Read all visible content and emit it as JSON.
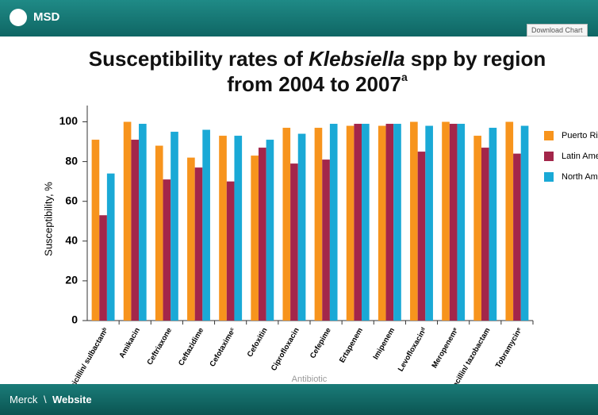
{
  "header": {
    "brand": "MSD",
    "button": "Download Chart"
  },
  "chart_data": {
    "type": "bar",
    "title": [
      "Susceptibility rates of ",
      "Klebsiella",
      " spp by region",
      "from 2004 to 2007",
      "a"
    ],
    "y_label": "Susceptibility, %",
    "x_label": "Antibiotic",
    "categories": [
      "Ampicillin/ sulbactamᵇ",
      "Amikacin",
      "Ceftriaxone",
      "Ceftazidime",
      "Cefotaximeᶜ",
      "Cefoxitin",
      "Ciprofloxacin",
      "Cefepime",
      "Ertapenem",
      "Imipenem",
      "Levofloxacinᵈ",
      "Meropenemᵉ",
      "Piperacillin/ tazobactam",
      "Tobramycinᵉ"
    ],
    "series": [
      {
        "name": "Puerto Rico",
        "color": "#f7941d",
        "values": [
          91,
          100,
          88,
          82,
          93,
          83,
          97,
          97,
          98,
          98,
          100,
          100,
          93,
          100
        ]
      },
      {
        "name": "Latin America",
        "color": "#a3264a",
        "values": [
          53,
          91,
          71,
          77,
          70,
          87,
          79,
          81,
          99,
          99,
          85,
          99,
          87,
          84
        ]
      },
      {
        "name": "North America",
        "color": "#1aa9d6",
        "values": [
          74,
          99,
          95,
          96,
          93,
          91,
          94,
          99,
          99,
          99,
          98,
          99,
          97,
          98
        ]
      }
    ],
    "ylim": [
      0,
      105
    ],
    "yticks": [
      0,
      20,
      40,
      60,
      80,
      100
    ]
  },
  "footer": {
    "company": "Merck",
    "link": "Website"
  }
}
